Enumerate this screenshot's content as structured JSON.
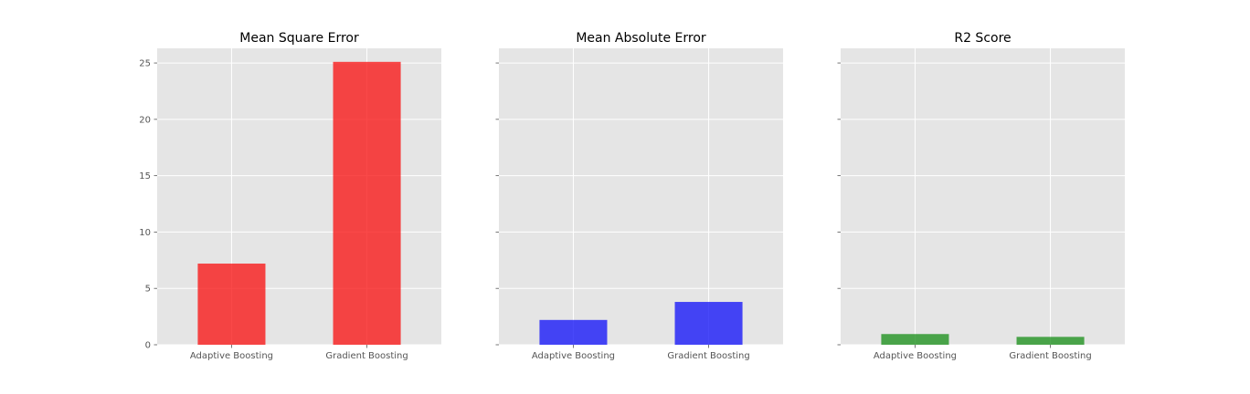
{
  "chart_data": [
    {
      "type": "bar",
      "title": "Mean Square Error",
      "categories": [
        "Adaptive Boosting",
        "Gradient Boosting"
      ],
      "values": [
        7.2,
        25.1
      ],
      "ylim": [
        0,
        26.3
      ],
      "yticks": [
        0,
        5,
        10,
        15,
        20,
        25
      ],
      "show_ytick_labels": true,
      "color": "#f80c0c",
      "grid": true
    },
    {
      "type": "bar",
      "title": "Mean Absolute Error",
      "categories": [
        "Adaptive Boosting",
        "Gradient Boosting"
      ],
      "values": [
        2.2,
        3.8
      ],
      "ylim": [
        0,
        26.3
      ],
      "yticks": [
        0,
        5,
        10,
        15,
        20,
        25
      ],
      "show_ytick_labels": false,
      "color": "#0c0cf8",
      "grid": true
    },
    {
      "type": "bar",
      "title": "R2 Score",
      "categories": [
        "Adaptive Boosting",
        "Gradient Boosting"
      ],
      "values": [
        0.95,
        0.7
      ],
      "ylim": [
        0,
        26.3
      ],
      "yticks": [
        0,
        5,
        10,
        15,
        20,
        25
      ],
      "show_ytick_labels": false,
      "color": "#148c14",
      "grid": true
    }
  ]
}
